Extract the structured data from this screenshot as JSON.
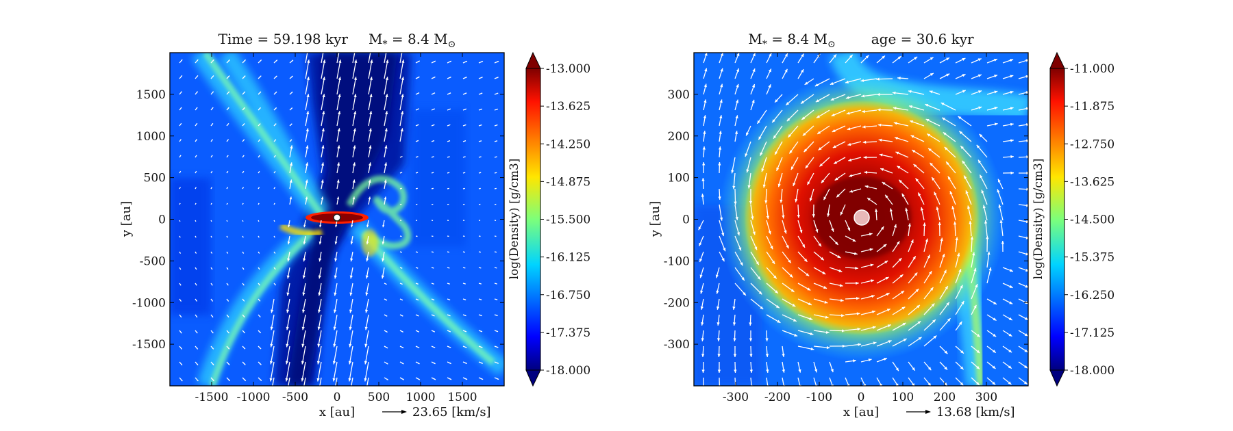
{
  "chart_data": [
    {
      "type": "heatmap",
      "title_parts": [
        "Time = 59.198 kyr",
        "M",
        "*",
        " = 8.4 M",
        "⊙"
      ],
      "xlabel": "x [au]",
      "ylabel": "y [au]",
      "xlim": [
        -2000,
        2000
      ],
      "ylim": [
        -2000,
        2000
      ],
      "xticks": [
        -1500,
        -1000,
        -500,
        0,
        500,
        1000,
        1500
      ],
      "yticks": [
        1500,
        1000,
        500,
        0,
        -500,
        -1000,
        -1500
      ],
      "colorbar": {
        "label": "log(Density) [g/cm3]",
        "min": -18.0,
        "max": -13.0,
        "ticks": [
          "-13.000",
          "-13.625",
          "-14.250",
          "-14.875",
          "-15.500",
          "-16.125",
          "-16.750",
          "-17.375",
          "-18.000"
        ]
      },
      "vector_key": "23.65 [km/s]",
      "grid": false,
      "star": {
        "x": 0,
        "y": 0
      }
    },
    {
      "type": "heatmap",
      "title_parts": [
        "M",
        "*",
        " = 8.4 M",
        "⊙",
        "age = 30.6 kyr"
      ],
      "xlabel": "x [au]",
      "ylabel": "y [au]",
      "xlim": [
        -400,
        400
      ],
      "ylim": [
        -400,
        400
      ],
      "xticks": [
        -300,
        -200,
        -100,
        0,
        100,
        200,
        300
      ],
      "yticks": [
        300,
        200,
        100,
        0,
        -100,
        -200,
        -300
      ],
      "colorbar": {
        "label": "log(Density) [g/cm3]",
        "min": -18.0,
        "max": -11.0,
        "ticks": [
          "-11.000",
          "-11.875",
          "-12.750",
          "-13.625",
          "-14.500",
          "-15.375",
          "-16.250",
          "-17.125",
          "-18.000"
        ]
      },
      "vector_key": "13.68 [km/s]",
      "grid": false,
      "star": {
        "x": 0,
        "y": 0
      }
    }
  ]
}
